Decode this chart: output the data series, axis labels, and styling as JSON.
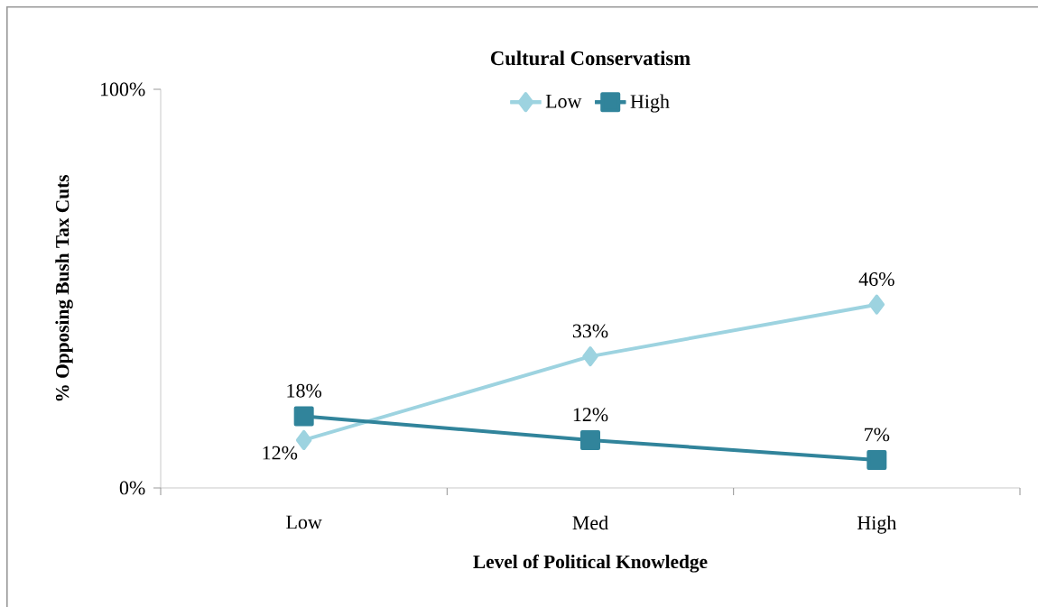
{
  "chart_data": {
    "type": "line",
    "title": "Cultural Conservatism",
    "xlabel": "Level of Political Knowledge",
    "ylabel": "% Opposing Bush Tax Cuts",
    "categories": [
      "Low",
      "Med",
      "High"
    ],
    "series": [
      {
        "name": "Low",
        "color": "#9dd3e0",
        "marker": "diamond",
        "values": [
          12,
          33,
          46
        ],
        "value_labels": [
          "12%",
          "33%",
          "46%"
        ]
      },
      {
        "name": "High",
        "color": "#31849b",
        "marker": "square",
        "values": [
          18,
          12,
          7
        ],
        "value_labels": [
          "18%",
          "12%",
          "7%"
        ]
      }
    ],
    "ylim": [
      0,
      100
    ],
    "yticks": [
      {
        "value": 0,
        "label": "0%"
      },
      {
        "value": 100,
        "label": "100%"
      }
    ],
    "grid": false,
    "legend": "top"
  }
}
